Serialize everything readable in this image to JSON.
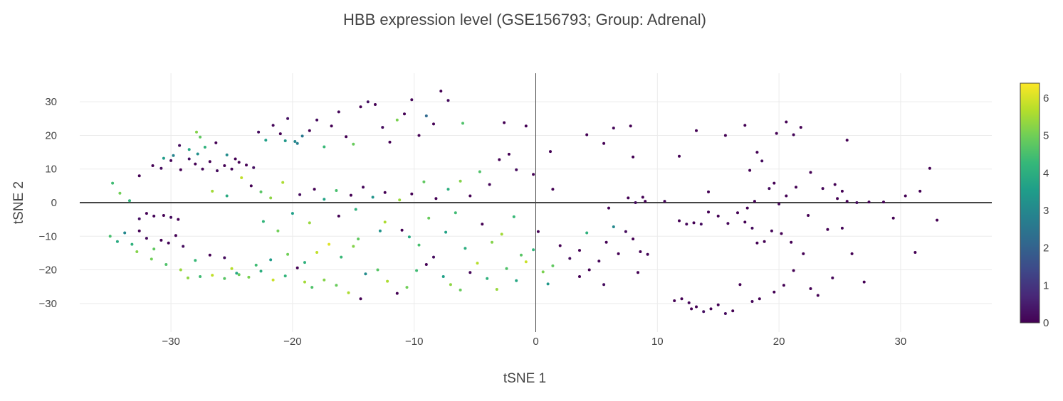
{
  "chart_data": {
    "type": "scatter",
    "title": "HBB expression level (GSE156793; Group: Adrenal)",
    "xlabel": "tSNE 1",
    "ylabel": "tSNE 2",
    "xlim": [
      -37.5,
      37.5
    ],
    "ylim": [
      -38.5,
      38.5
    ],
    "x_ticks": [
      -30,
      -20,
      -10,
      0,
      10,
      20,
      30
    ],
    "y_ticks": [
      -30,
      -20,
      -10,
      0,
      10,
      20,
      30
    ],
    "x_tick_labels": [
      "−30",
      "−20",
      "−10",
      "0",
      "10",
      "20",
      "30"
    ],
    "y_tick_labels": [
      "−30",
      "−20",
      "−10",
      "0",
      "10",
      "20",
      "30"
    ],
    "grid": true,
    "colorscale": "viridis",
    "colorscale_stops": [
      "#440154",
      "#482878",
      "#3e4989",
      "#31688e",
      "#26828e",
      "#1f9e89",
      "#35b779",
      "#6ece58",
      "#b5de2b",
      "#fde725"
    ],
    "colorbar": {
      "range": [
        0,
        6.4
      ],
      "ticks": [
        0,
        1,
        2,
        3,
        4,
        5,
        6
      ],
      "tick_labels": [
        "0",
        "1",
        "2",
        "3",
        "4",
        "5",
        "6"
      ],
      "placement": "right"
    },
    "points": [
      [
        -31.5,
        11.0,
        0.0
      ],
      [
        -30.8,
        10.2,
        0.2
      ],
      [
        -30.0,
        12.5,
        0.1
      ],
      [
        -29.2,
        9.8,
        0.0
      ],
      [
        -28.5,
        13.0,
        0.3
      ],
      [
        -28.0,
        11.5,
        0.0
      ],
      [
        -27.4,
        10.0,
        0.1
      ],
      [
        -26.8,
        12.2,
        0.0
      ],
      [
        -26.2,
        9.5,
        0.2
      ],
      [
        -25.6,
        11.0,
        0.0
      ],
      [
        -25.0,
        10.0,
        0.1
      ],
      [
        -24.4,
        12.0,
        0.0
      ],
      [
        -23.8,
        11.2,
        0.0
      ],
      [
        -23.2,
        10.4,
        0.3
      ],
      [
        -27.8,
        14.5,
        3.2
      ],
      [
        -28.5,
        15.8,
        3.8
      ],
      [
        -29.8,
        14.0,
        2.9
      ],
      [
        -30.6,
        13.2,
        3.5
      ],
      [
        -27.2,
        16.5,
        4.1
      ],
      [
        -27.6,
        19.5,
        4.8
      ],
      [
        -27.9,
        21.0,
        5.2
      ],
      [
        -26.3,
        17.8,
        0.0
      ],
      [
        -29.3,
        17.0,
        0.2
      ],
      [
        -25.4,
        14.2,
        3.1
      ],
      [
        -24.7,
        13.0,
        0.0
      ],
      [
        -22.8,
        21.0,
        0.2
      ],
      [
        -22.2,
        18.6,
        3.6
      ],
      [
        -21.6,
        23.0,
        0.1
      ],
      [
        -21.0,
        20.5,
        0.0
      ],
      [
        -20.4,
        25.0,
        0.3
      ],
      [
        -19.8,
        18.2,
        3.0
      ],
      [
        -19.2,
        19.8,
        2.6
      ],
      [
        -18.6,
        21.4,
        0.0
      ],
      [
        -18.0,
        24.6,
        0.2
      ],
      [
        -17.4,
        16.6,
        4.3
      ],
      [
        -16.8,
        22.8,
        0.0
      ],
      [
        -16.2,
        27.0,
        0.1
      ],
      [
        -15.6,
        19.6,
        0.0
      ],
      [
        -15.0,
        17.4,
        4.9
      ],
      [
        -14.4,
        28.5,
        0.0
      ],
      [
        -13.8,
        30.0,
        0.3
      ],
      [
        -13.2,
        29.2,
        0.0
      ],
      [
        -12.6,
        22.4,
        0.2
      ],
      [
        -12.0,
        18.0,
        0.0
      ],
      [
        -11.4,
        24.6,
        5.1
      ],
      [
        -10.8,
        26.4,
        0.0
      ],
      [
        -10.2,
        30.6,
        0.1
      ],
      [
        -9.6,
        20.0,
        0.0
      ],
      [
        -9.0,
        25.8,
        2.2
      ],
      [
        -8.4,
        23.4,
        0.0
      ],
      [
        -7.8,
        33.2,
        0.0
      ],
      [
        -7.2,
        30.4,
        0.2
      ],
      [
        -6.0,
        23.6,
        4.6
      ],
      [
        -20.6,
        18.4,
        3.4
      ],
      [
        -19.6,
        17.6,
        2.8
      ],
      [
        -34.8,
        5.8,
        4.4
      ],
      [
        -34.2,
        2.8,
        5.0
      ],
      [
        -33.4,
        0.6,
        4.2
      ],
      [
        -32.6,
        8.0,
        0.0
      ],
      [
        -26.6,
        3.4,
        5.5
      ],
      [
        -25.4,
        2.0,
        3.9
      ],
      [
        -24.2,
        7.4,
        5.8
      ],
      [
        -23.4,
        5.0,
        0.0
      ],
      [
        -22.6,
        3.2,
        4.7
      ],
      [
        -21.8,
        1.4,
        5.3
      ],
      [
        -20.8,
        6.0,
        5.6
      ],
      [
        -19.4,
        2.4,
        0.2
      ],
      [
        -18.2,
        4.0,
        0.0
      ],
      [
        -17.4,
        1.0,
        3.7
      ],
      [
        -16.4,
        3.6,
        4.5
      ],
      [
        -15.2,
        2.2,
        0.0
      ],
      [
        -14.2,
        4.6,
        0.1
      ],
      [
        -13.4,
        1.6,
        3.3
      ],
      [
        -12.4,
        3.0,
        0.0
      ],
      [
        -11.2,
        0.8,
        5.4
      ],
      [
        -10.2,
        2.6,
        0.0
      ],
      [
        -9.2,
        6.2,
        4.8
      ],
      [
        -8.2,
        1.2,
        0.0
      ],
      [
        -7.2,
        4.0,
        4.0
      ],
      [
        -6.2,
        6.4,
        5.2
      ],
      [
        -5.4,
        2.0,
        0.0
      ],
      [
        -4.6,
        9.2,
        4.6
      ],
      [
        -3.8,
        5.4,
        0.1
      ],
      [
        -3.0,
        12.8,
        0.0
      ],
      [
        -2.2,
        14.4,
        0.0
      ],
      [
        -1.6,
        9.8,
        0.2
      ],
      [
        -0.8,
        22.8,
        0.0
      ],
      [
        -0.2,
        8.4,
        0.0
      ],
      [
        1.4,
        4.0,
        0.0
      ],
      [
        1.2,
        15.2,
        0.0
      ],
      [
        -2.6,
        23.8,
        0.0
      ],
      [
        -30.6,
        -3.8,
        0.0
      ],
      [
        -30.0,
        -4.4,
        0.2
      ],
      [
        -29.4,
        -5.0,
        0.0
      ],
      [
        -31.4,
        -4.0,
        0.1
      ],
      [
        -32.0,
        -3.2,
        0.0
      ],
      [
        -32.6,
        -4.8,
        0.3
      ],
      [
        -35.0,
        -10.0,
        4.5
      ],
      [
        -34.4,
        -11.6,
        3.9
      ],
      [
        -33.8,
        -9.0,
        3.0
      ],
      [
        -33.2,
        -12.4,
        4.1
      ],
      [
        -32.6,
        -8.4,
        0.0
      ],
      [
        -32.0,
        -10.6,
        0.2
      ],
      [
        -31.4,
        -13.8,
        4.8
      ],
      [
        -30.8,
        -11.2,
        0.0
      ],
      [
        -30.2,
        -12.0,
        0.1
      ],
      [
        -29.6,
        -9.8,
        0.0
      ],
      [
        -29.0,
        -13.0,
        0.2
      ],
      [
        -32.8,
        -14.6,
        5.2
      ],
      [
        -31.6,
        -16.8,
        5.0
      ],
      [
        -30.4,
        -18.4,
        4.6
      ],
      [
        -29.2,
        -20.0,
        5.4
      ],
      [
        -28.0,
        -17.2,
        4.3
      ],
      [
        -26.8,
        -15.6,
        0.0
      ],
      [
        -25.6,
        -16.4,
        0.2
      ],
      [
        -25.0,
        -19.6,
        5.7
      ],
      [
        -24.4,
        -21.4,
        4.9
      ],
      [
        -28.6,
        -22.4,
        5.3
      ],
      [
        -27.6,
        -22.0,
        4.4
      ],
      [
        -26.6,
        -21.6,
        5.8
      ],
      [
        -25.6,
        -22.6,
        4.7
      ],
      [
        -24.6,
        -21.0,
        3.8
      ],
      [
        -23.6,
        -22.2,
        5.1
      ],
      [
        -22.6,
        -20.4,
        4.0
      ],
      [
        -21.6,
        -23.0,
        5.9
      ],
      [
        -20.6,
        -21.8,
        4.2
      ],
      [
        -19.6,
        -19.4,
        0.0
      ],
      [
        -19.0,
        -23.6,
        5.5
      ],
      [
        -18.4,
        -25.2,
        4.6
      ],
      [
        -17.4,
        -23.0,
        5.2
      ],
      [
        -16.4,
        -24.6,
        4.9
      ],
      [
        -15.4,
        -26.8,
        5.6
      ],
      [
        -14.4,
        -28.6,
        0.0
      ],
      [
        -23.0,
        -18.6,
        4.4
      ],
      [
        -21.8,
        -17.0,
        3.5
      ],
      [
        -20.4,
        -15.4,
        5.0
      ],
      [
        -19.0,
        -17.8,
        4.1
      ],
      [
        -18.0,
        -14.8,
        5.8
      ],
      [
        -17.0,
        -12.4,
        6.1
      ],
      [
        -16.0,
        -16.2,
        4.3
      ],
      [
        -15.0,
        -13.0,
        5.2
      ],
      [
        -14.0,
        -21.2,
        3.1
      ],
      [
        -13.0,
        -20.0,
        4.7
      ],
      [
        -12.2,
        -23.4,
        5.6
      ],
      [
        -11.4,
        -27.0,
        0.0
      ],
      [
        -10.6,
        -25.2,
        5.0
      ],
      [
        -9.8,
        -20.2,
        4.4
      ],
      [
        -9.0,
        -18.4,
        0.0
      ],
      [
        -8.4,
        -16.2,
        0.2
      ],
      [
        -7.6,
        -22.0,
        3.6
      ],
      [
        -7.0,
        -24.4,
        5.3
      ],
      [
        -6.2,
        -26.0,
        4.9
      ],
      [
        -5.4,
        -20.8,
        0.1
      ],
      [
        -4.8,
        -18.0,
        5.7
      ],
      [
        -4.0,
        -22.6,
        4.1
      ],
      [
        -3.2,
        -25.8,
        5.4
      ],
      [
        -2.4,
        -19.6,
        4.6
      ],
      [
        -1.6,
        -23.2,
        3.8
      ],
      [
        -0.8,
        -17.6,
        5.9
      ],
      [
        -0.2,
        -14.0,
        4.2
      ],
      [
        0.6,
        -20.6,
        5.1
      ],
      [
        1.4,
        -18.8,
        4.8
      ],
      [
        1.0,
        -24.2,
        3.4
      ],
      [
        -9.6,
        -12.6,
        4.5
      ],
      [
        -10.4,
        -10.2,
        3.9
      ],
      [
        -5.8,
        -13.6,
        4.0
      ],
      [
        -3.6,
        -11.8,
        5.2
      ],
      [
        -1.2,
        -15.6,
        4.7
      ],
      [
        -12.8,
        -8.4,
        3.3
      ],
      [
        -14.6,
        -10.8,
        4.8
      ],
      [
        -18.6,
        -6.0,
        5.4
      ],
      [
        -20.0,
        -3.2,
        3.6
      ],
      [
        -21.2,
        -8.4,
        5.0
      ],
      [
        -22.4,
        -5.6,
        4.2
      ],
      [
        -16.2,
        -4.0,
        0.0
      ],
      [
        -14.8,
        -2.0,
        4.1
      ],
      [
        -12.4,
        -5.8,
        5.6
      ],
      [
        -11.0,
        -8.2,
        0.0
      ],
      [
        -8.8,
        -4.6,
        4.9
      ],
      [
        -7.4,
        -8.8,
        3.7
      ],
      [
        -6.6,
        -3.0,
        4.4
      ],
      [
        -4.4,
        -6.4,
        0.0
      ],
      [
        -2.8,
        -9.4,
        5.5
      ],
      [
        -1.8,
        -4.2,
        4.3
      ],
      [
        0.2,
        -8.6,
        0.0
      ],
      [
        2.0,
        -12.8,
        0.0
      ],
      [
        2.8,
        -16.6,
        0.2
      ],
      [
        3.6,
        -14.2,
        0.0
      ],
      [
        4.2,
        -9.0,
        4.1
      ],
      [
        4.4,
        -20.0,
        0.0
      ],
      [
        5.2,
        -17.4,
        0.1
      ],
      [
        5.8,
        -11.8,
        0.0
      ],
      [
        6.4,
        -7.2,
        3.0
      ],
      [
        6.8,
        -15.2,
        0.0
      ],
      [
        7.4,
        -8.6,
        0.2
      ],
      [
        8.0,
        -10.8,
        0.0
      ],
      [
        8.6,
        -14.6,
        0.0
      ],
      [
        9.2,
        -15.4,
        0.1
      ],
      [
        8.4,
        -20.8,
        0.0
      ],
      [
        3.6,
        -22.0,
        0.0
      ],
      [
        5.6,
        -24.4,
        0.2
      ],
      [
        12.0,
        -28.6,
        0.0
      ],
      [
        12.6,
        -29.8,
        0.1
      ],
      [
        13.2,
        -31.0,
        0.0
      ],
      [
        13.8,
        -32.4,
        0.3
      ],
      [
        14.4,
        -31.6,
        0.0
      ],
      [
        15.0,
        -30.4,
        0.0
      ],
      [
        15.6,
        -33.0,
        0.2
      ],
      [
        16.2,
        -32.2,
        0.0
      ],
      [
        11.4,
        -29.2,
        0.0
      ],
      [
        17.8,
        -29.4,
        0.1
      ],
      [
        18.4,
        -28.6,
        0.0
      ],
      [
        12.8,
        -31.6,
        0.0
      ],
      [
        11.8,
        -5.4,
        0.0
      ],
      [
        12.4,
        -6.4,
        0.1
      ],
      [
        13.0,
        -6.0,
        0.0
      ],
      [
        13.6,
        -6.4,
        0.2
      ],
      [
        14.2,
        -2.8,
        0.0
      ],
      [
        15.0,
        -4.0,
        0.0
      ],
      [
        15.8,
        -6.2,
        0.1
      ],
      [
        16.6,
        -3.0,
        0.0
      ],
      [
        17.2,
        -5.8,
        0.0
      ],
      [
        17.8,
        -7.6,
        0.2
      ],
      [
        18.2,
        -12.0,
        0.0
      ],
      [
        18.8,
        -11.6,
        0.0
      ],
      [
        19.4,
        -8.4,
        0.1
      ],
      [
        20.2,
        -9.2,
        0.0
      ],
      [
        21.0,
        -11.8,
        0.0
      ],
      [
        17.4,
        -1.6,
        0.0
      ],
      [
        18.0,
        0.4,
        0.0
      ],
      [
        19.2,
        4.2,
        0.2
      ],
      [
        20.6,
        2.0,
        0.0
      ],
      [
        21.4,
        4.6,
        0.0
      ],
      [
        20.0,
        -0.4,
        0.1
      ],
      [
        22.4,
        -3.8,
        0.0
      ],
      [
        24.0,
        -8.0,
        0.0
      ],
      [
        25.2,
        -7.6,
        0.1
      ],
      [
        26.0,
        -15.2,
        0.0
      ],
      [
        27.0,
        -23.6,
        0.0
      ],
      [
        28.6,
        0.2,
        0.0
      ],
      [
        27.4,
        0.2,
        0.0
      ],
      [
        26.4,
        0.0,
        0.2
      ],
      [
        25.6,
        0.4,
        0.0
      ],
      [
        24.8,
        1.2,
        0.0
      ],
      [
        25.2,
        3.4,
        0.0
      ],
      [
        23.6,
        4.2,
        0.1
      ],
      [
        22.6,
        9.0,
        0.0
      ],
      [
        19.6,
        5.8,
        0.0
      ],
      [
        18.2,
        15.0,
        0.0
      ],
      [
        17.6,
        9.6,
        0.0
      ],
      [
        18.6,
        12.4,
        0.2
      ],
      [
        19.8,
        20.6,
        0.0
      ],
      [
        20.6,
        24.0,
        0.0
      ],
      [
        21.2,
        20.2,
        0.1
      ],
      [
        21.8,
        22.4,
        0.0
      ],
      [
        17.2,
        23.0,
        0.0
      ],
      [
        15.6,
        20.0,
        0.0
      ],
      [
        13.2,
        21.4,
        0.0
      ],
      [
        11.8,
        13.8,
        0.0
      ],
      [
        8.0,
        13.6,
        0.0
      ],
      [
        6.4,
        22.2,
        0.1
      ],
      [
        5.6,
        17.6,
        0.0
      ],
      [
        4.2,
        20.2,
        0.0
      ],
      [
        7.8,
        22.8,
        0.0
      ],
      [
        8.8,
        1.6,
        0.0
      ],
      [
        8.2,
        0.0,
        0.2
      ],
      [
        9.0,
        0.4,
        0.0
      ],
      [
        7.6,
        1.4,
        0.0
      ],
      [
        6.0,
        -1.6,
        0.0
      ],
      [
        10.6,
        0.4,
        0.1
      ],
      [
        14.2,
        3.2,
        0.0
      ],
      [
        22.0,
        -15.2,
        0.0
      ],
      [
        21.2,
        -20.2,
        0.0
      ],
      [
        22.6,
        -25.6,
        0.0
      ],
      [
        23.2,
        -27.6,
        0.0
      ],
      [
        24.4,
        -22.4,
        0.1
      ],
      [
        20.4,
        -24.6,
        0.0
      ],
      [
        19.6,
        -26.6,
        0.0
      ],
      [
        16.8,
        -24.4,
        0.0
      ],
      [
        25.6,
        18.6,
        0.0
      ],
      [
        24.6,
        5.4,
        0.0
      ],
      [
        30.4,
        2.0,
        0.0
      ],
      [
        31.6,
        3.4,
        0.0
      ],
      [
        32.4,
        10.2,
        0.0
      ],
      [
        33.0,
        -5.2,
        0.0
      ],
      [
        31.2,
        -14.8,
        0.0
      ],
      [
        29.4,
        -4.6,
        0.0
      ]
    ]
  }
}
